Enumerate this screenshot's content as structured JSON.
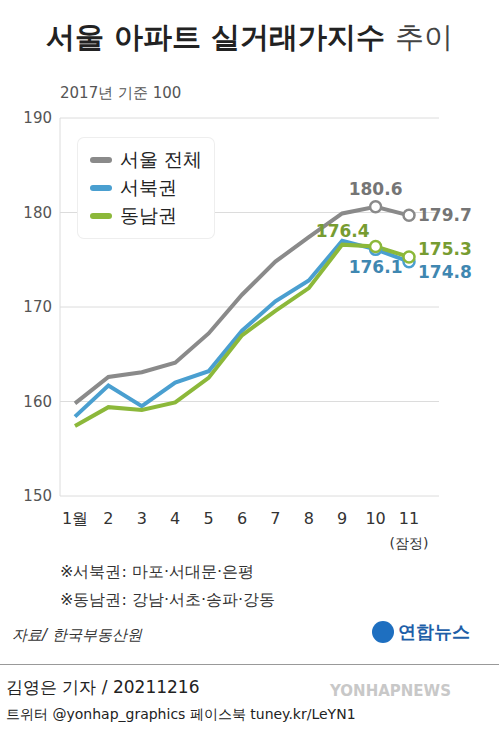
{
  "chart_data": {
    "type": "line",
    "title": "서울 아파트 실거래가지수 추이",
    "subtitle": "2017년 기준 100",
    "categories": [
      "1월",
      "2",
      "3",
      "4",
      "5",
      "6",
      "7",
      "8",
      "9",
      "10",
      "11"
    ],
    "provisional_label": "(잠정)",
    "series": [
      {
        "name": "서울 전체",
        "color": "#8a8a8a",
        "marker": "circle",
        "values": [
          159.8,
          162.6,
          163.1,
          164.1,
          167.2,
          171.3,
          174.8,
          177.4,
          179.9,
          180.6,
          179.7
        ],
        "value_labels": [
          null,
          null,
          null,
          null,
          null,
          null,
          null,
          null,
          null,
          "180.6",
          "179.7"
        ]
      },
      {
        "name": "서북권",
        "color": "#4a9fd0",
        "marker": "circle",
        "values": [
          158.4,
          161.7,
          159.5,
          162.0,
          163.2,
          167.5,
          170.6,
          172.8,
          177.0,
          176.1,
          174.8
        ],
        "value_labels": [
          null,
          null,
          null,
          null,
          null,
          null,
          null,
          null,
          null,
          "176.1",
          "174.8"
        ]
      },
      {
        "name": "동남권",
        "color": "#8cb83a",
        "marker": "circle",
        "values": [
          157.4,
          159.4,
          159.1,
          159.9,
          162.5,
          167.0,
          169.6,
          172.0,
          176.6,
          176.4,
          175.3
        ],
        "value_labels": [
          null,
          null,
          null,
          null,
          null,
          null,
          null,
          null,
          null,
          "176.4",
          "175.3"
        ]
      }
    ],
    "ylim": [
      150,
      190
    ],
    "yticks": [
      150,
      160,
      170,
      180,
      190
    ],
    "grid": true,
    "legend": "upper left",
    "notes": [
      "※서북권: 마포·서대문·은평",
      "※동남권: 강남·서초·송파·강동"
    ],
    "source": "자료/ 한국부동산원",
    "logo": "연합뉴스",
    "byline": "김영은 기자 / 20211216",
    "social": "트위터 @yonhap_graphics 페이스북 tuney.kr/LeYN1",
    "watermark": "YONHAPNEWS"
  }
}
